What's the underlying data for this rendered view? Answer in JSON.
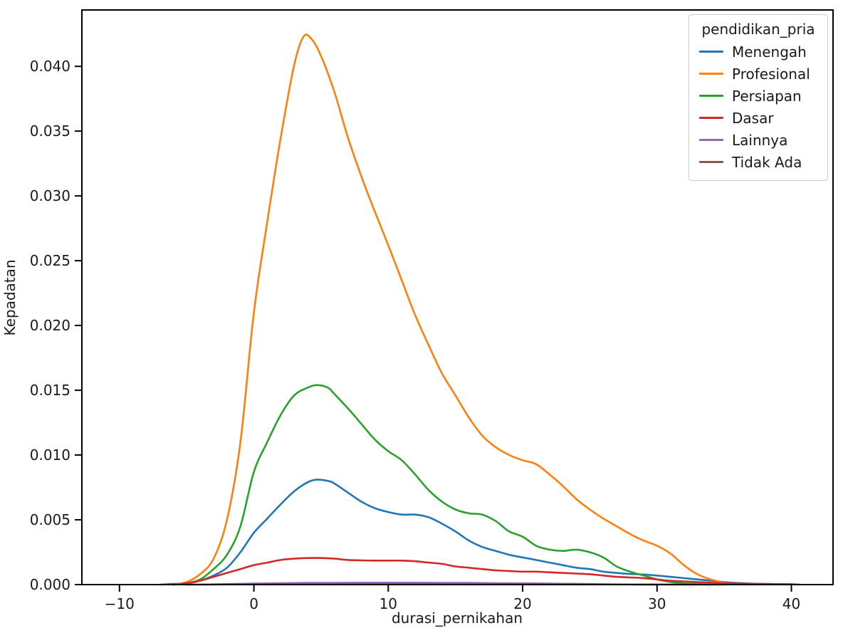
{
  "figure": {
    "background": "#ffffff",
    "frame_color": "#000000"
  },
  "axes": {
    "x": {
      "label": "durasi_pernikahan",
      "tick_values": [
        -10,
        0,
        10,
        20,
        30,
        40
      ],
      "tick_labels": [
        "−10",
        "0",
        "10",
        "20",
        "30",
        "40"
      ],
      "min": -12.8,
      "max": 43.1
    },
    "y": {
      "label": "Kepadatan",
      "tick_values": [
        0.0,
        0.005,
        0.01,
        0.015,
        0.02,
        0.025,
        0.03,
        0.035,
        0.04
      ],
      "tick_labels": [
        "0.000",
        "0.005",
        "0.010",
        "0.015",
        "0.020",
        "0.025",
        "0.030",
        "0.035",
        "0.040"
      ],
      "min": 0,
      "max": 0.04435
    }
  },
  "legend": {
    "title": "pendidikan_pria",
    "items": [
      {
        "label": "Menengah",
        "color": "#1f77b4"
      },
      {
        "label": "Profesional",
        "color": "#ff7f0e"
      },
      {
        "label": "Persiapan",
        "color": "#2ca02c"
      },
      {
        "label": "Dasar",
        "color": "#d62728"
      },
      {
        "label": "Lainnya",
        "color": "#9467bd"
      },
      {
        "label": "Tidak Ada",
        "color": "#8c564b"
      }
    ]
  },
  "chart_data": {
    "type": "line",
    "subtype": "kde-density",
    "title": "",
    "xlabel": "durasi_pernikahan",
    "ylabel": "Kepadatan",
    "xlim": [
      -12.8,
      43.1
    ],
    "ylim": [
      0,
      0.04435
    ],
    "grid": false,
    "legend_position": "upper right",
    "series": [
      {
        "name": "Menengah",
        "color": "#1f77b4",
        "points": [
          [
            -7,
            0
          ],
          [
            -6,
            5e-05
          ],
          [
            -5,
            0.0001
          ],
          [
            -4,
            0.0003
          ],
          [
            -3,
            0.0007
          ],
          [
            -2,
            0.0013
          ],
          [
            -1,
            0.0025
          ],
          [
            0,
            0.004
          ],
          [
            1,
            0.0051
          ],
          [
            2,
            0.0062
          ],
          [
            3,
            0.0072
          ],
          [
            4,
            0.0079
          ],
          [
            4.7,
            0.0081
          ],
          [
            5.5,
            0.008
          ],
          [
            6,
            0.0078
          ],
          [
            7,
            0.0071
          ],
          [
            8,
            0.0064
          ],
          [
            9,
            0.0059
          ],
          [
            10,
            0.0056
          ],
          [
            11,
            0.0054
          ],
          [
            12,
            0.0054
          ],
          [
            13,
            0.0052
          ],
          [
            14,
            0.0047
          ],
          [
            15,
            0.0041
          ],
          [
            16,
            0.0034
          ],
          [
            17,
            0.0029
          ],
          [
            18,
            0.0026
          ],
          [
            19,
            0.0023
          ],
          [
            20,
            0.0021
          ],
          [
            21,
            0.0019
          ],
          [
            22,
            0.0017
          ],
          [
            23,
            0.0015
          ],
          [
            24,
            0.0013
          ],
          [
            25,
            0.0012
          ],
          [
            26,
            0.001
          ],
          [
            27,
            0.0009
          ],
          [
            28,
            0.00082
          ],
          [
            29,
            0.00078
          ],
          [
            30,
            0.0007
          ],
          [
            31,
            0.0006
          ],
          [
            32,
            0.0005
          ],
          [
            33,
            0.0004
          ],
          [
            34,
            0.0003
          ],
          [
            35,
            0.0002
          ],
          [
            36,
            0.00012
          ],
          [
            37,
            8e-05
          ],
          [
            38,
            5e-05
          ],
          [
            39,
            3e-05
          ],
          [
            40,
            2e-05
          ]
        ]
      },
      {
        "name": "Profesional",
        "color": "#ff7f0e",
        "points": [
          [
            -6,
            0
          ],
          [
            -5,
            0.0002
          ],
          [
            -4,
            0.0008
          ],
          [
            -3,
            0.002
          ],
          [
            -2,
            0.005
          ],
          [
            -1,
            0.011
          ],
          [
            0,
            0.021
          ],
          [
            1,
            0.028
          ],
          [
            2,
            0.0345
          ],
          [
            3,
            0.0401
          ],
          [
            3.7,
            0.0423
          ],
          [
            4.3,
            0.0421
          ],
          [
            5,
            0.0408
          ],
          [
            6,
            0.038
          ],
          [
            7,
            0.0345
          ],
          [
            8,
            0.0315
          ],
          [
            9,
            0.0288
          ],
          [
            10,
            0.0262
          ],
          [
            11,
            0.0235
          ],
          [
            12,
            0.0208
          ],
          [
            13,
            0.0185
          ],
          [
            14,
            0.0163
          ],
          [
            15,
            0.0146
          ],
          [
            16,
            0.0129
          ],
          [
            17,
            0.0115
          ],
          [
            18,
            0.0106
          ],
          [
            19,
            0.01
          ],
          [
            20,
            0.0096
          ],
          [
            21,
            0.0093
          ],
          [
            22,
            0.0085
          ],
          [
            23,
            0.0076
          ],
          [
            24,
            0.0066
          ],
          [
            25,
            0.0058
          ],
          [
            26,
            0.0051
          ],
          [
            27,
            0.0045
          ],
          [
            28,
            0.0039
          ],
          [
            29,
            0.0034
          ],
          [
            30,
            0.003
          ],
          [
            31,
            0.0024
          ],
          [
            32,
            0.0015
          ],
          [
            33,
            0.0008
          ],
          [
            34,
            0.0004
          ],
          [
            35,
            0.00015
          ],
          [
            36,
            5e-05
          ],
          [
            37,
            0
          ]
        ]
      },
      {
        "name": "Persiapan",
        "color": "#2ca02c",
        "points": [
          [
            -6,
            0
          ],
          [
            -5,
            0.0001
          ],
          [
            -4,
            0.0004
          ],
          [
            -3,
            0.0012
          ],
          [
            -2,
            0.0023
          ],
          [
            -1,
            0.0045
          ],
          [
            0,
            0.0087
          ],
          [
            1,
            0.011
          ],
          [
            2,
            0.0131
          ],
          [
            3,
            0.0146
          ],
          [
            4,
            0.0152
          ],
          [
            4.7,
            0.0154
          ],
          [
            5.5,
            0.0152
          ],
          [
            6,
            0.0147
          ],
          [
            7,
            0.0136
          ],
          [
            8,
            0.0124
          ],
          [
            9,
            0.0112
          ],
          [
            10,
            0.0103
          ],
          [
            11,
            0.0096
          ],
          [
            12,
            0.0085
          ],
          [
            13,
            0.0073
          ],
          [
            14,
            0.0064
          ],
          [
            15,
            0.0058
          ],
          [
            16,
            0.0055
          ],
          [
            17,
            0.0054
          ],
          [
            18,
            0.0049
          ],
          [
            19,
            0.0041
          ],
          [
            20,
            0.0037
          ],
          [
            21,
            0.003
          ],
          [
            22,
            0.0027
          ],
          [
            23,
            0.0026
          ],
          [
            24,
            0.0027
          ],
          [
            25,
            0.0025
          ],
          [
            26,
            0.0021
          ],
          [
            27,
            0.0014
          ],
          [
            28,
            0.001
          ],
          [
            29,
            0.0007
          ],
          [
            30,
            0.0004
          ],
          [
            31,
            0.0002
          ],
          [
            32,
            0.0001
          ],
          [
            33,
            5e-05
          ],
          [
            34,
            0
          ]
        ]
      },
      {
        "name": "Dasar",
        "color": "#d62728",
        "points": [
          [
            -6,
            0
          ],
          [
            -5,
            0.0001
          ],
          [
            -4,
            0.0003
          ],
          [
            -3,
            0.0006
          ],
          [
            -2,
            0.0009
          ],
          [
            -1,
            0.0012
          ],
          [
            0,
            0.0015
          ],
          [
            1,
            0.0017
          ],
          [
            2,
            0.0019
          ],
          [
            3,
            0.002
          ],
          [
            4,
            0.00205
          ],
          [
            5,
            0.00205
          ],
          [
            6,
            0.002
          ],
          [
            7,
            0.0019
          ],
          [
            8,
            0.00187
          ],
          [
            9,
            0.00185
          ],
          [
            10,
            0.00185
          ],
          [
            11,
            0.00185
          ],
          [
            12,
            0.0018
          ],
          [
            13,
            0.0017
          ],
          [
            14,
            0.0016
          ],
          [
            15,
            0.0014
          ],
          [
            16,
            0.0013
          ],
          [
            17,
            0.0012
          ],
          [
            18,
            0.0011
          ],
          [
            19,
            0.00105
          ],
          [
            20,
            0.001
          ],
          [
            21,
            0.001
          ],
          [
            22,
            0.00095
          ],
          [
            23,
            0.0009
          ],
          [
            24,
            0.00085
          ],
          [
            25,
            0.0008
          ],
          [
            26,
            0.0007
          ],
          [
            27,
            0.0006
          ],
          [
            28,
            0.00055
          ],
          [
            29,
            0.0005
          ],
          [
            30,
            0.0004
          ],
          [
            31,
            0.0003
          ],
          [
            32,
            0.00025
          ],
          [
            33,
            0.0002
          ],
          [
            34,
            0.00015
          ],
          [
            35,
            0.0001
          ],
          [
            36,
            8e-05
          ],
          [
            37,
            6e-05
          ],
          [
            38,
            5e-05
          ],
          [
            39,
            4e-05
          ],
          [
            40,
            3e-05
          ],
          [
            40.6,
            0
          ]
        ]
      },
      {
        "name": "Lainnya",
        "color": "#9467bd",
        "points": [
          [
            -4,
            0
          ],
          [
            -2,
            4e-05
          ],
          [
            0,
            8e-05
          ],
          [
            2,
            0.00011
          ],
          [
            4,
            0.00013
          ],
          [
            6,
            0.00014
          ],
          [
            8,
            0.00015
          ],
          [
            10,
            0.00015
          ],
          [
            12,
            0.00015
          ],
          [
            14,
            0.00014
          ],
          [
            16,
            0.00013
          ],
          [
            18,
            0.00011
          ],
          [
            20,
            0.0001
          ],
          [
            22,
            8e-05
          ],
          [
            24,
            6e-05
          ],
          [
            26,
            3e-05
          ],
          [
            28,
            1e-05
          ],
          [
            30,
            0
          ]
        ]
      },
      {
        "name": "Tidak Ada",
        "color": "#8c564b",
        "points": [
          [
            -5,
            0
          ],
          [
            0,
            2e-05
          ],
          [
            5,
            3e-05
          ],
          [
            10,
            3e-05
          ],
          [
            15,
            3e-05
          ],
          [
            20,
            2e-05
          ],
          [
            25,
            2e-05
          ],
          [
            30,
            1e-05
          ],
          [
            35,
            0
          ]
        ]
      }
    ]
  }
}
